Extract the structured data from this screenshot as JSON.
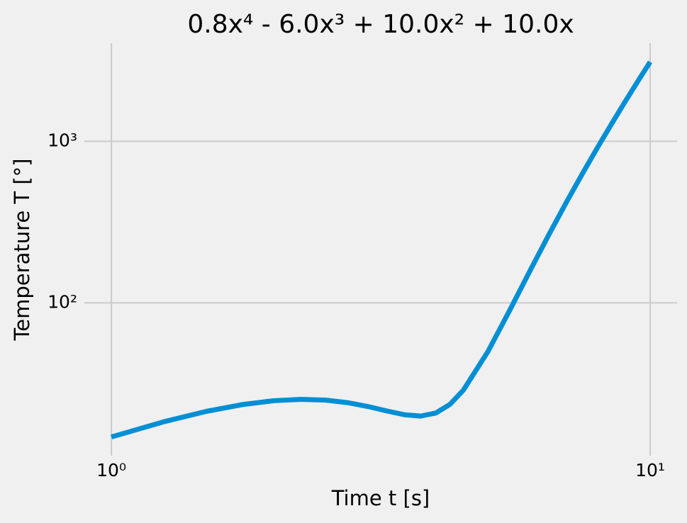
{
  "chart_data": {
    "type": "line",
    "title": "0.8x⁴ - 6.0x³ + 10.0x² + 10.0x",
    "xlabel": "Time t [s]",
    "ylabel": "Temperature T [°]",
    "x": [
      1,
      1.25,
      1.5,
      1.75,
      2,
      2.25,
      2.5,
      2.75,
      3,
      3.25,
      3.5,
      3.75,
      4,
      4.25,
      4.5,
      5,
      5.5,
      6,
      6.5,
      7,
      7.5,
      8,
      8.5,
      9,
      9.5,
      10
    ],
    "values": [
      14.8,
      18.359,
      21.3,
      23.472,
      24.8,
      25.284,
      25.0,
      24.097,
      22.8,
      21.409,
      20.3,
      19.922,
      20.8,
      23.534,
      28.8,
      50,
      91.3,
      160.8,
      267.8,
      422.8,
      637.5,
      924.8,
      1298.8,
      1774.8,
      2369.3,
      3100
    ],
    "color": "#008fd5",
    "xscale": "log",
    "yscale": "log",
    "xlim": [
      0.891,
      11.22
    ],
    "ylim": [
      11.33,
      4047
    ],
    "xticks": [
      {
        "value": 1,
        "label": "10⁰"
      },
      {
        "value": 10,
        "label": "10¹"
      }
    ],
    "yticks": [
      {
        "value": 100,
        "label": "10²"
      },
      {
        "value": 1000,
        "label": "10³"
      }
    ],
    "grid": true
  }
}
